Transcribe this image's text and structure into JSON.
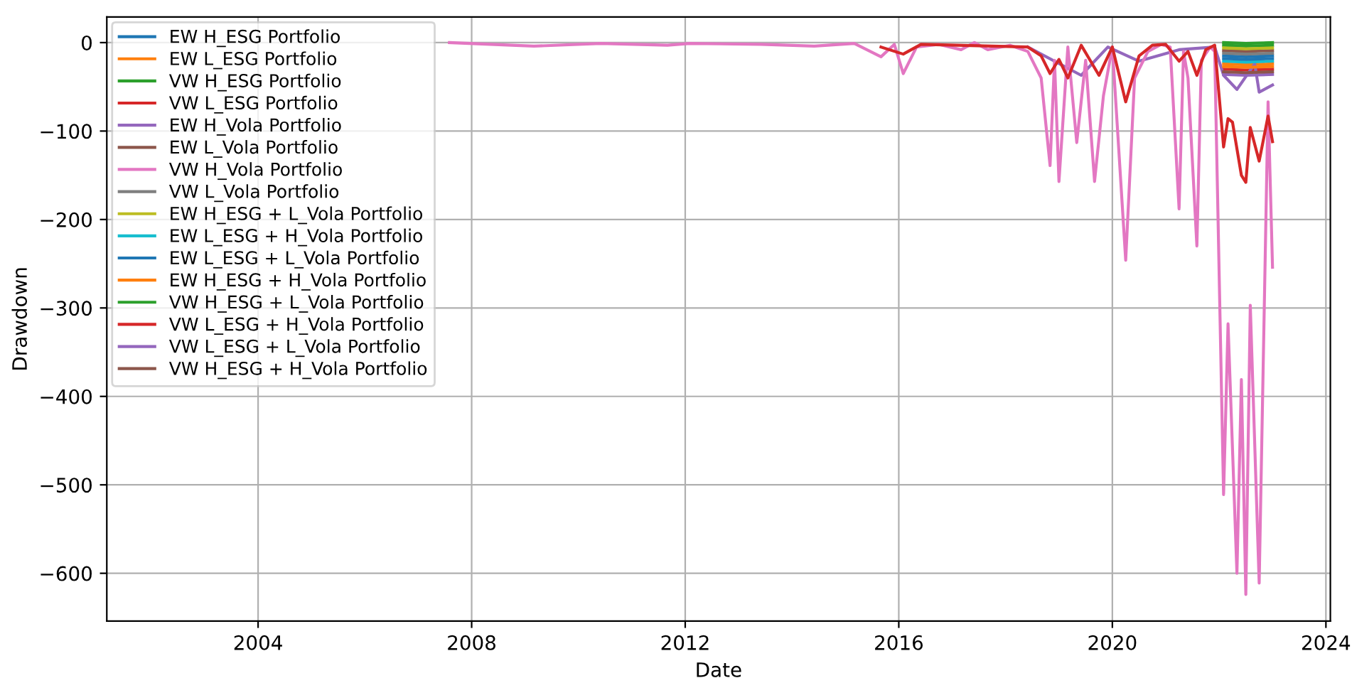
{
  "chart_data": {
    "type": "line",
    "xlabel": "Date",
    "ylabel": "Drawdown",
    "x": [
      "2022-02",
      "2022-07",
      "2023-01"
    ],
    "xlim": [
      "2001-03",
      "2024-02"
    ],
    "xticks": [
      "2004",
      "2008",
      "2012",
      "2016",
      "2020",
      "2024"
    ],
    "ylim": [
      -654,
      29
    ],
    "yticks": [
      0,
      -100,
      -200,
      -300,
      -400,
      -500,
      -600
    ],
    "grid": true,
    "legend": "top left",
    "series": [
      {
        "name": "EW H_ESG Portfolio",
        "color": "#1f77b4",
        "values": [
          -15,
          -16,
          -15
        ]
      },
      {
        "name": "EW L_ESG Portfolio",
        "color": "#ff7f0e",
        "values": [
          -24,
          -25,
          -24
        ]
      },
      {
        "name": "VW H_ESG Portfolio",
        "color": "#2ca02c",
        "values": [
          -3,
          -4,
          -3
        ]
      },
      {
        "name": "VW L_ESG Portfolio",
        "color": "#d62728",
        "values": [
          -30,
          -31,
          -30
        ]
      },
      {
        "name": "EW H_Vola Portfolio",
        "color": "#9467bd",
        "x": [
          "2018-06",
          "2019-06",
          "2019-12",
          "2020-07",
          "2021-04",
          "2021-12",
          "2022-02",
          "2022-05",
          "2022-09",
          "2022-10",
          "2023-01"
        ],
        "values": [
          -5,
          -37,
          -5,
          -21,
          -8,
          -5,
          -37,
          -53,
          -24,
          -56,
          -48
        ]
      },
      {
        "name": "EW L_Vola Portfolio",
        "color": "#8c564b",
        "values": [
          -9,
          -10,
          -9
        ]
      },
      {
        "name": "VW H_Vola Portfolio",
        "color": "#e377c2",
        "x": [
          "2007-08",
          "2008-10",
          "2009-03",
          "2010-06",
          "2011-09",
          "2012-02",
          "2013-06",
          "2014-06",
          "2015-03",
          "2015-09",
          "2015-12",
          "2016-02",
          "2016-05",
          "2016-10",
          "2017-03",
          "2017-06",
          "2017-09",
          "2018-02",
          "2018-06",
          "2018-09",
          "2018-11",
          "2018-12",
          "2019-01",
          "2019-03",
          "2019-05",
          "2019-07",
          "2019-09",
          "2019-11",
          "2020-01",
          "2020-04",
          "2020-06",
          "2020-09",
          "2020-12",
          "2021-02",
          "2021-04",
          "2021-05",
          "2021-06",
          "2021-08",
          "2021-09",
          "2021-11",
          "2021-12",
          "2022-02",
          "2022-03",
          "2022-05",
          "2022-06",
          "2022-07",
          "2022-08",
          "2022-10",
          "2022-12",
          "2023-01"
        ],
        "values": [
          0,
          -3,
          -4,
          -1,
          -3,
          -1,
          -2,
          -4,
          -1,
          -16,
          -2,
          -35,
          -5,
          -2,
          -8,
          0,
          -8,
          -3,
          -10,
          -40,
          -139,
          -20,
          -157,
          -5,
          -113,
          -20,
          -157,
          -60,
          -5,
          -246,
          -40,
          -10,
          -2,
          -5,
          -188,
          -10,
          -40,
          -230,
          -20,
          -5,
          -10,
          -511,
          -318,
          -600,
          -381,
          -624,
          -297,
          -611,
          -67,
          -254
        ]
      },
      {
        "name": "VW L_Vola Portfolio",
        "color": "#7f7f7f",
        "values": [
          -12,
          -13,
          -12
        ]
      },
      {
        "name": "EW H_ESG + L_Vola Portfolio",
        "color": "#bcbd22",
        "values": [
          -6,
          -7,
          -6
        ]
      },
      {
        "name": "EW L_ESG + H_Vola Portfolio",
        "color": "#17becf",
        "values": [
          -21,
          -22,
          -21
        ]
      },
      {
        "name": "EW L_ESG + L_Vola Portfolio",
        "color": "#1f77b4",
        "values": [
          -18,
          -19,
          -18
        ]
      },
      {
        "name": "EW H_ESG + H_Vola Portfolio",
        "color": "#ff7f0e",
        "values": [
          -27,
          -28,
          -27
        ]
      },
      {
        "name": "VW H_ESG + L_Vola Portfolio",
        "color": "#2ca02c",
        "values": [
          0,
          -1,
          0
        ]
      },
      {
        "name": "VW L_ESG + H_Vola Portfolio",
        "color": "#d62728",
        "x": [
          "2015-09",
          "2016-02",
          "2016-06",
          "2018-06",
          "2018-09",
          "2018-11",
          "2019-01",
          "2019-03",
          "2019-06",
          "2019-10",
          "2020-01",
          "2020-04",
          "2020-07",
          "2020-10",
          "2021-01",
          "2021-04",
          "2021-06",
          "2021-08",
          "2021-10",
          "2021-12",
          "2022-02",
          "2022-03",
          "2022-04",
          "2022-06",
          "2022-07",
          "2022-08",
          "2022-10",
          "2022-12",
          "2023-01"
        ],
        "values": [
          -5,
          -13,
          -2,
          -5,
          -15,
          -35,
          -19,
          -40,
          -3,
          -37,
          -5,
          -67,
          -15,
          -3,
          -2,
          -21,
          -10,
          -37,
          -8,
          -3,
          -118,
          -86,
          -90,
          -150,
          -158,
          -96,
          -134,
          -83,
          -112
        ]
      },
      {
        "name": "VW L_ESG + L_Vola Portfolio",
        "color": "#9467bd",
        "values": [
          -36,
          -37,
          -36
        ]
      },
      {
        "name": "VW H_ESG + H_Vola Portfolio",
        "color": "#8c564b",
        "values": [
          -33,
          -34,
          -33
        ]
      }
    ]
  }
}
